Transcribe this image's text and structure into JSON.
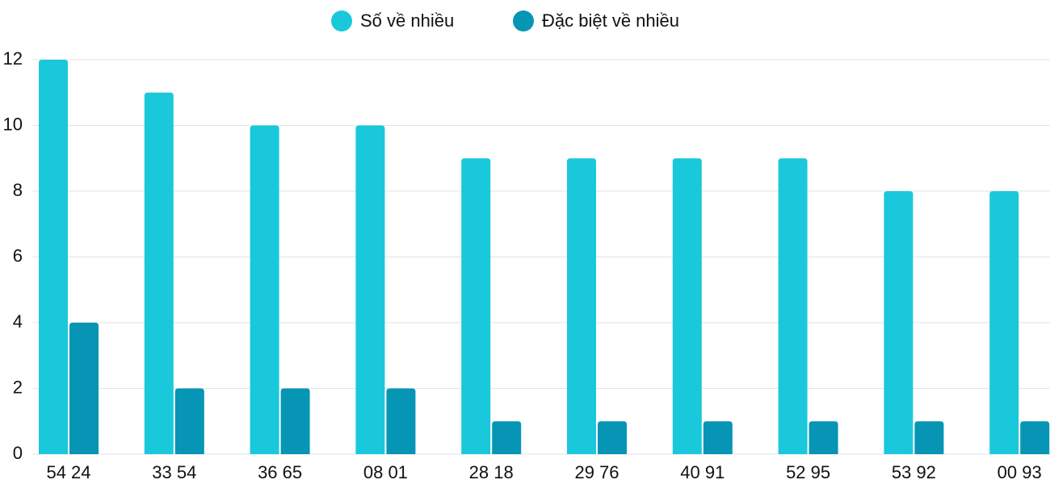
{
  "chart_data": {
    "type": "bar",
    "categories": [
      "54 24",
      "33 54",
      "36 65",
      "08 01",
      "28 18",
      "29 76",
      "40 91",
      "52 95",
      "53 92",
      "00 93"
    ],
    "series": [
      {
        "name": "Số về nhiều",
        "color": "#1ac8db",
        "values": [
          12,
          11,
          10,
          10,
          9,
          9,
          9,
          9,
          8,
          8
        ]
      },
      {
        "name": "Đặc biệt về nhiều",
        "color": "#0795b5",
        "values": [
          4,
          2,
          2,
          2,
          1,
          1,
          1,
          1,
          1,
          1
        ]
      }
    ],
    "ylim": [
      0,
      12
    ],
    "yticks": [
      0,
      2,
      4,
      6,
      8,
      10,
      12
    ],
    "grid": true,
    "legend": "top"
  }
}
